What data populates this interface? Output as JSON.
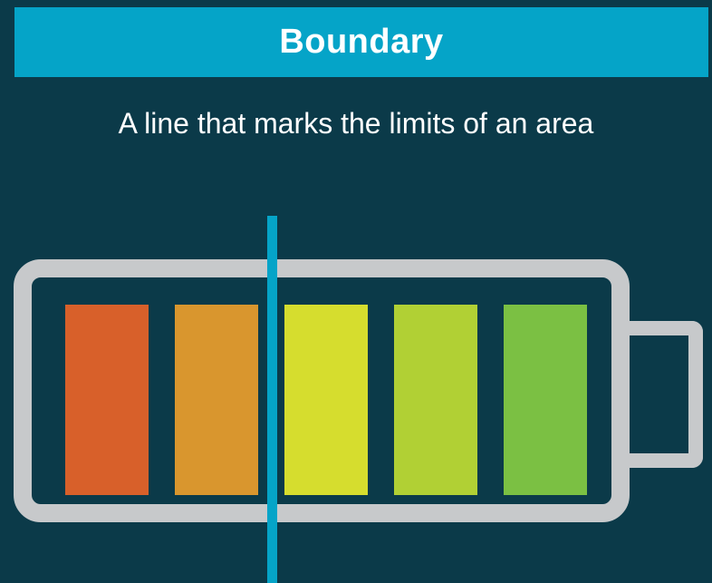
{
  "header": {
    "title": "Boundary"
  },
  "definition": {
    "text": "A line that marks the limits of an area"
  },
  "battery": {
    "cells": [
      {
        "color": "#d8602a"
      },
      {
        "color": "#d9962e"
      },
      {
        "color": "#d6dd2e"
      },
      {
        "color": "#b1d034"
      },
      {
        "color": "#7bc043"
      }
    ],
    "shell_color": "#c7c9cb",
    "boundary_line_color": "#05a4c8"
  },
  "colors": {
    "background": "#0b3a49",
    "title_bar": "#05a4c8",
    "text": "#ffffff"
  }
}
